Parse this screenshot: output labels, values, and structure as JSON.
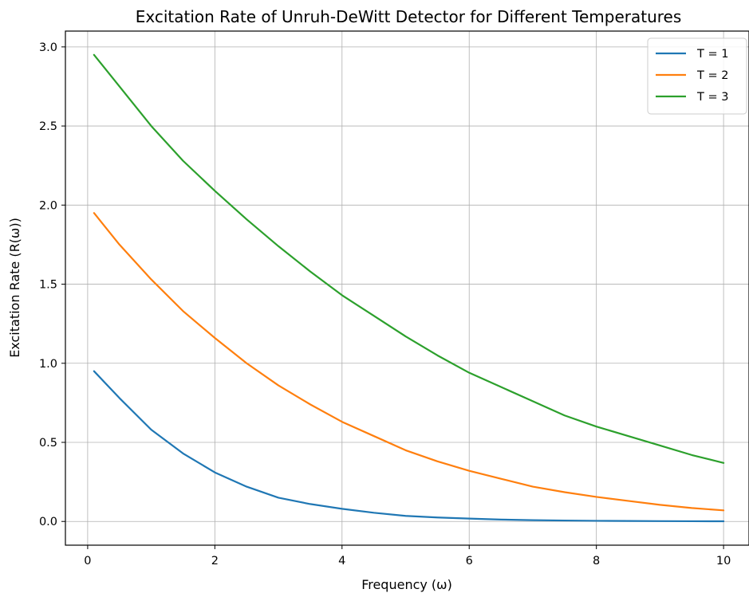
{
  "chart_data": {
    "type": "line",
    "title": "Excitation Rate of Unruh-DeWitt Detector for Different Temperatures",
    "xlabel": "Frequency (ω)",
    "ylabel": "Excitation Rate (R(ω))",
    "xlim": [
      -0.35,
      10.4
    ],
    "ylim": [
      -0.15,
      3.1
    ],
    "xticks": [
      0,
      2,
      4,
      6,
      8,
      10
    ],
    "xtick_labels": [
      "0",
      "2",
      "4",
      "6",
      "8",
      "10"
    ],
    "yticks": [
      0.0,
      0.5,
      1.0,
      1.5,
      2.0,
      2.5,
      3.0
    ],
    "ytick_labels": [
      "0.0",
      "0.5",
      "1.0",
      "1.5",
      "2.0",
      "2.5",
      "3.0"
    ],
    "grid": true,
    "legend_position": "top-right",
    "x": [
      0.1,
      0.5,
      1.0,
      1.5,
      2.0,
      2.5,
      3.0,
      3.5,
      4.0,
      4.5,
      5.0,
      5.5,
      6.0,
      6.5,
      7.0,
      7.5,
      8.0,
      8.5,
      9.0,
      9.5,
      10.0
    ],
    "series": [
      {
        "name": "T = 1",
        "color": "#1f77b4",
        "values": [
          0.95,
          0.78,
          0.58,
          0.43,
          0.31,
          0.22,
          0.15,
          0.11,
          0.08,
          0.055,
          0.035,
          0.025,
          0.018,
          0.012,
          0.008,
          0.006,
          0.004,
          0.003,
          0.002,
          0.0015,
          0.001
        ]
      },
      {
        "name": "T = 2",
        "color": "#ff7f0e",
        "values": [
          1.95,
          1.75,
          1.53,
          1.33,
          1.16,
          1.0,
          0.86,
          0.74,
          0.63,
          0.54,
          0.45,
          0.38,
          0.32,
          0.27,
          0.22,
          0.185,
          0.155,
          0.13,
          0.105,
          0.085,
          0.07
        ]
      },
      {
        "name": "T = 3",
        "color": "#2ca02c",
        "values": [
          2.95,
          2.75,
          2.5,
          2.28,
          2.09,
          1.91,
          1.74,
          1.58,
          1.43,
          1.3,
          1.17,
          1.05,
          0.94,
          0.85,
          0.76,
          0.67,
          0.6,
          0.54,
          0.48,
          0.42,
          0.37
        ]
      }
    ]
  }
}
